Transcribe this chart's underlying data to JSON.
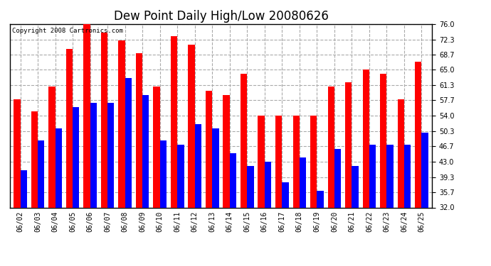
{
  "title": "Dew Point Daily High/Low 20080626",
  "copyright": "Copyright 2008 Cartronics.com",
  "dates": [
    "06/02",
    "06/03",
    "06/04",
    "06/05",
    "06/06",
    "06/07",
    "06/08",
    "06/09",
    "06/10",
    "06/11",
    "06/12",
    "06/13",
    "06/14",
    "06/15",
    "06/16",
    "06/17",
    "06/18",
    "06/19",
    "06/20",
    "06/21",
    "06/22",
    "06/23",
    "06/24",
    "06/25"
  ],
  "highs": [
    58,
    55,
    61,
    70,
    76,
    74,
    72,
    69,
    61,
    73,
    71,
    60,
    59,
    64,
    54,
    54,
    54,
    54,
    61,
    62,
    65,
    64,
    58,
    67
  ],
  "lows": [
    41,
    48,
    51,
    56,
    57,
    57,
    63,
    59,
    48,
    47,
    52,
    51,
    45,
    42,
    43,
    38,
    44,
    36,
    46,
    42,
    47,
    47,
    47,
    50
  ],
  "high_color": "#FF0000",
  "low_color": "#0000FF",
  "bg_color": "#FFFFFF",
  "plot_bg_color": "#FFFFFF",
  "grid_color": "#AAAAAA",
  "ymin": 32.0,
  "ymax": 76.0,
  "yticks": [
    32.0,
    35.7,
    39.3,
    43.0,
    46.7,
    50.3,
    54.0,
    57.7,
    61.3,
    65.0,
    68.7,
    72.3,
    76.0
  ],
  "bar_width": 0.38,
  "title_fontsize": 12,
  "tick_fontsize": 7,
  "copyright_fontsize": 6.5
}
